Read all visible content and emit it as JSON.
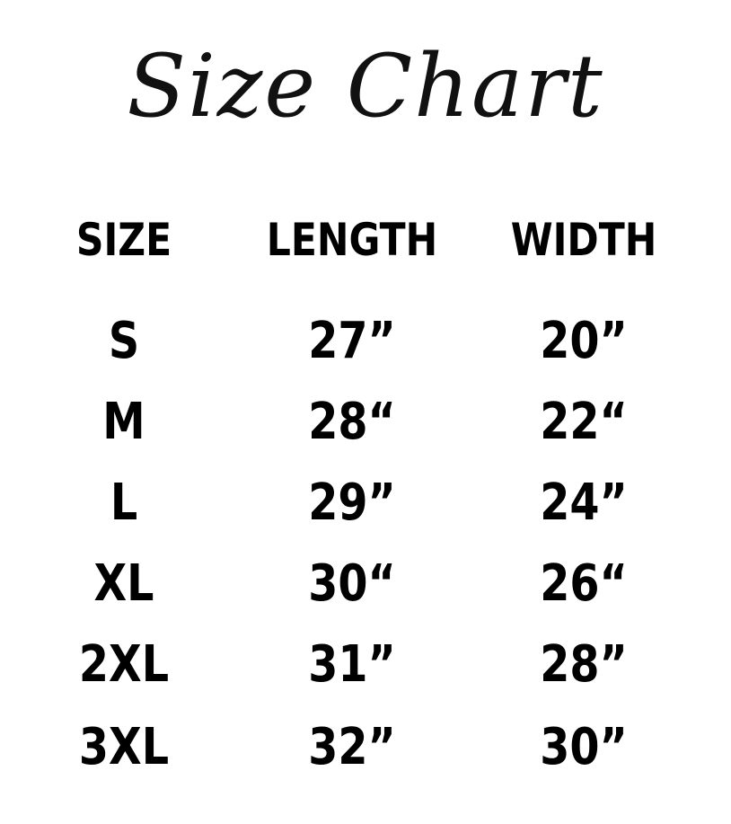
{
  "title": "Size Chart",
  "headers": [
    "SIZE",
    "LENGTH",
    "WIDTH"
  ],
  "rows": [
    {
      "size": "S",
      "length": "27”",
      "width": "20”"
    },
    {
      "size": "M",
      "length": "28“",
      "width": "22“"
    },
    {
      "size": "L",
      "length": "29”",
      "width": "24”"
    },
    {
      "size": "XL",
      "length": "30“",
      "width": "26“"
    },
    {
      "size": "2XL",
      "length": "31”",
      "width": "28”"
    },
    {
      "size": "3XL",
      "length": "32”",
      "width": "30”"
    }
  ]
}
